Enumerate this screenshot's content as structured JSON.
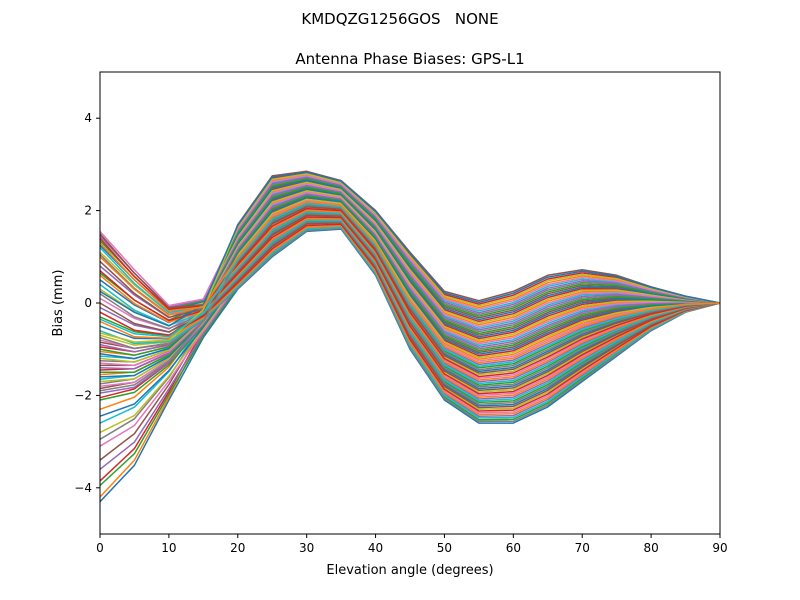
{
  "suptitle": "KMDQZG1256GOS   NONE",
  "chart_data": {
    "type": "line",
    "title": "Antenna Phase Biases: GPS-L1",
    "xlabel": "Elevation angle (degrees)",
    "ylabel": "Bias (mm)",
    "xlim": [
      0,
      90
    ],
    "ylim": [
      -5,
      5
    ],
    "xticks": [
      0,
      10,
      20,
      30,
      40,
      50,
      60,
      70,
      80,
      90
    ],
    "yticks": [
      -4,
      -2,
      0,
      2,
      4
    ],
    "xtick_labels": [
      "0",
      "10",
      "20",
      "30",
      "40",
      "50",
      "60",
      "70",
      "80",
      "90"
    ],
    "ytick_labels": [
      "−4",
      "−2",
      "0",
      "2",
      "4"
    ],
    "grid": false,
    "legend": "none",
    "x": [
      0,
      5,
      10,
      15,
      20,
      25,
      30,
      35,
      40,
      45,
      50,
      55,
      60,
      65,
      70,
      75,
      80,
      85,
      90
    ],
    "series_count": 72,
    "series_note": "One curve per azimuth bin; envelope curves read from the figure, intermediate curves interpolated between them.",
    "envelope_curves": {
      "lowest_start": [
        -4.3,
        -4.15,
        -2.9,
        -1.5,
        -0.6,
        0.55,
        1.2,
        1.2,
        0.0,
        -1.2,
        -2.1,
        -2.6,
        -2.6,
        -2.2,
        -1.7,
        -1.15,
        -0.65,
        -0.25,
        0.0
      ],
      "highest_start": [
        1.55,
        1.4,
        1.1,
        1.0,
        1.3,
        1.85,
        1.7,
        1.65,
        1.05,
        0.2,
        -0.6,
        -1.1,
        -1.2,
        -1.0,
        -0.65,
        -0.4,
        -0.2,
        -0.05,
        0.0
      ],
      "highest_peak": [
        -1.1,
        -1.3,
        -1.2,
        -0.2,
        1.7,
        2.75,
        2.85,
        2.65,
        2.0,
        1.1,
        0.25,
        0.05,
        0.25,
        0.6,
        0.72,
        0.6,
        0.35,
        0.15,
        0.0
      ],
      "lowest_trough": [
        -1.8,
        -1.6,
        -1.3,
        -0.5,
        0.3,
        1.0,
        1.55,
        1.6,
        0.6,
        -1.0,
        -2.1,
        -2.6,
        -2.6,
        -2.25,
        -1.7,
        -1.15,
        -0.6,
        -0.2,
        0.0
      ]
    },
    "series_start_values": [
      -4.3,
      -4.2,
      -3.95,
      -3.85,
      -3.6,
      -3.4,
      -3.1,
      -2.95,
      -2.8,
      -2.6,
      -2.45,
      -2.3,
      -2.1,
      -2.05,
      -1.95,
      -1.85,
      -1.8,
      -1.75,
      -1.7,
      -1.65,
      -1.6,
      -1.55,
      -1.5,
      -1.45,
      -1.4,
      -1.35,
      -1.3,
      -1.25,
      -1.2,
      -1.15,
      -1.1,
      -1.05,
      -1.0,
      -0.95,
      -0.9,
      -0.85,
      -0.8,
      -0.75,
      -0.7,
      -0.6,
      -0.5,
      -0.4,
      -0.3,
      -0.2,
      -0.1,
      0.0,
      0.1,
      0.2,
      0.3,
      0.4,
      0.5,
      0.6,
      0.65,
      0.7,
      0.8,
      0.9,
      1.0,
      1.05,
      1.1,
      1.2,
      1.25,
      1.3,
      1.35,
      1.4,
      1.45,
      1.5,
      1.55,
      -1.9,
      -0.65,
      -0.35,
      0.25,
      1.0
    ],
    "colors": [
      "#1f77b4",
      "#ff7f0e",
      "#2ca02c",
      "#d62728",
      "#9467bd",
      "#8c564b",
      "#e377c2",
      "#7f7f7f",
      "#bcbd22",
      "#17becf"
    ]
  }
}
